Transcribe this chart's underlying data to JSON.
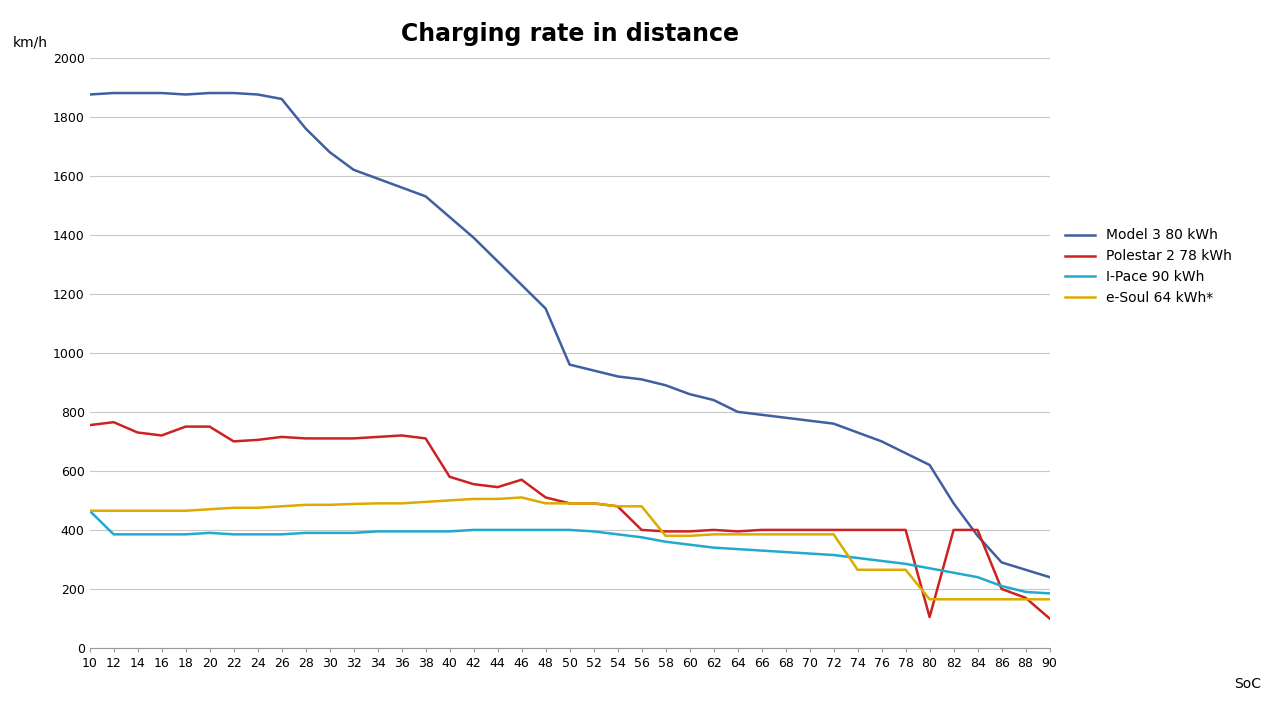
{
  "title": "Charging rate in distance",
  "ylabel": "km/h",
  "xlabel": "SoC",
  "xlim": [
    10,
    90
  ],
  "ylim": [
    0,
    2000
  ],
  "yticks": [
    0,
    200,
    400,
    600,
    800,
    1000,
    1200,
    1400,
    1600,
    1800,
    2000
  ],
  "xticks": [
    10,
    12,
    14,
    16,
    18,
    20,
    22,
    24,
    26,
    28,
    30,
    32,
    34,
    36,
    38,
    40,
    42,
    44,
    46,
    48,
    50,
    52,
    54,
    56,
    58,
    60,
    62,
    64,
    66,
    68,
    70,
    72,
    74,
    76,
    78,
    80,
    82,
    84,
    86,
    88,
    90
  ],
  "series": {
    "Model 3 80 kWh": {
      "color": "#3F5FA0",
      "linewidth": 1.8,
      "x": [
        10,
        12,
        14,
        16,
        18,
        20,
        22,
        24,
        26,
        28,
        30,
        32,
        34,
        36,
        38,
        40,
        42,
        44,
        46,
        48,
        50,
        52,
        54,
        56,
        58,
        60,
        62,
        64,
        66,
        68,
        70,
        72,
        74,
        76,
        78,
        80,
        82,
        84,
        86,
        88,
        90
      ],
      "y": [
        1875,
        1880,
        1880,
        1880,
        1875,
        1880,
        1880,
        1875,
        1860,
        1760,
        1680,
        1620,
        1590,
        1560,
        1530,
        1460,
        1390,
        1310,
        1230,
        1150,
        960,
        940,
        920,
        910,
        890,
        860,
        840,
        800,
        790,
        780,
        770,
        760,
        730,
        700,
        660,
        620,
        490,
        380,
        290,
        265,
        240
      ]
    },
    "Polestar 2 78 kWh": {
      "color": "#CC2222",
      "linewidth": 1.8,
      "x": [
        10,
        12,
        14,
        16,
        18,
        20,
        22,
        24,
        26,
        28,
        30,
        32,
        34,
        36,
        38,
        40,
        42,
        44,
        46,
        48,
        50,
        52,
        54,
        56,
        58,
        60,
        62,
        64,
        66,
        68,
        70,
        72,
        74,
        76,
        78,
        80,
        82,
        84,
        86,
        88,
        90
      ],
      "y": [
        755,
        765,
        730,
        720,
        750,
        750,
        700,
        705,
        715,
        710,
        710,
        710,
        715,
        720,
        710,
        580,
        555,
        545,
        570,
        510,
        490,
        490,
        480,
        400,
        395,
        395,
        400,
        395,
        400,
        400,
        400,
        400,
        400,
        400,
        400,
        105,
        400,
        400,
        200,
        170,
        100
      ]
    },
    "I-Pace 90 kWh": {
      "color": "#22AACC",
      "linewidth": 1.8,
      "x": [
        10,
        12,
        14,
        16,
        18,
        20,
        22,
        24,
        26,
        28,
        30,
        32,
        34,
        36,
        38,
        40,
        42,
        44,
        46,
        48,
        50,
        52,
        54,
        56,
        58,
        60,
        62,
        64,
        66,
        68,
        70,
        72,
        74,
        76,
        78,
        80,
        82,
        84,
        86,
        88,
        90
      ],
      "y": [
        465,
        385,
        385,
        385,
        385,
        390,
        385,
        385,
        385,
        390,
        390,
        390,
        395,
        395,
        395,
        395,
        400,
        400,
        400,
        400,
        400,
        395,
        385,
        375,
        360,
        350,
        340,
        335,
        330,
        325,
        320,
        315,
        305,
        295,
        285,
        270,
        255,
        240,
        210,
        190,
        185
      ]
    },
    "e-Soul 64 kWh*": {
      "color": "#DDAA00",
      "linewidth": 1.8,
      "x": [
        10,
        12,
        14,
        16,
        18,
        20,
        22,
        24,
        26,
        28,
        30,
        32,
        34,
        36,
        38,
        40,
        42,
        44,
        46,
        48,
        50,
        52,
        54,
        56,
        58,
        60,
        62,
        64,
        66,
        68,
        70,
        72,
        74,
        76,
        78,
        80,
        82,
        84,
        86,
        88,
        90
      ],
      "y": [
        465,
        465,
        465,
        465,
        465,
        470,
        475,
        475,
        480,
        485,
        485,
        488,
        490,
        490,
        495,
        500,
        505,
        505,
        510,
        490,
        490,
        490,
        480,
        480,
        380,
        380,
        385,
        385,
        385,
        385,
        385,
        385,
        265,
        265,
        265,
        165,
        165,
        165,
        165,
        165,
        165
      ]
    }
  },
  "legend_order": [
    "Model 3 80 kWh",
    "Polestar 2 78 kWh",
    "I-Pace 90 kWh",
    "e-Soul 64 kWh*"
  ],
  "background_color": "#FFFFFF",
  "grid_color": "#C8C8C8",
  "title_fontsize": 17,
  "axis_label_fontsize": 10,
  "tick_fontsize": 9,
  "legend_fontsize": 10
}
